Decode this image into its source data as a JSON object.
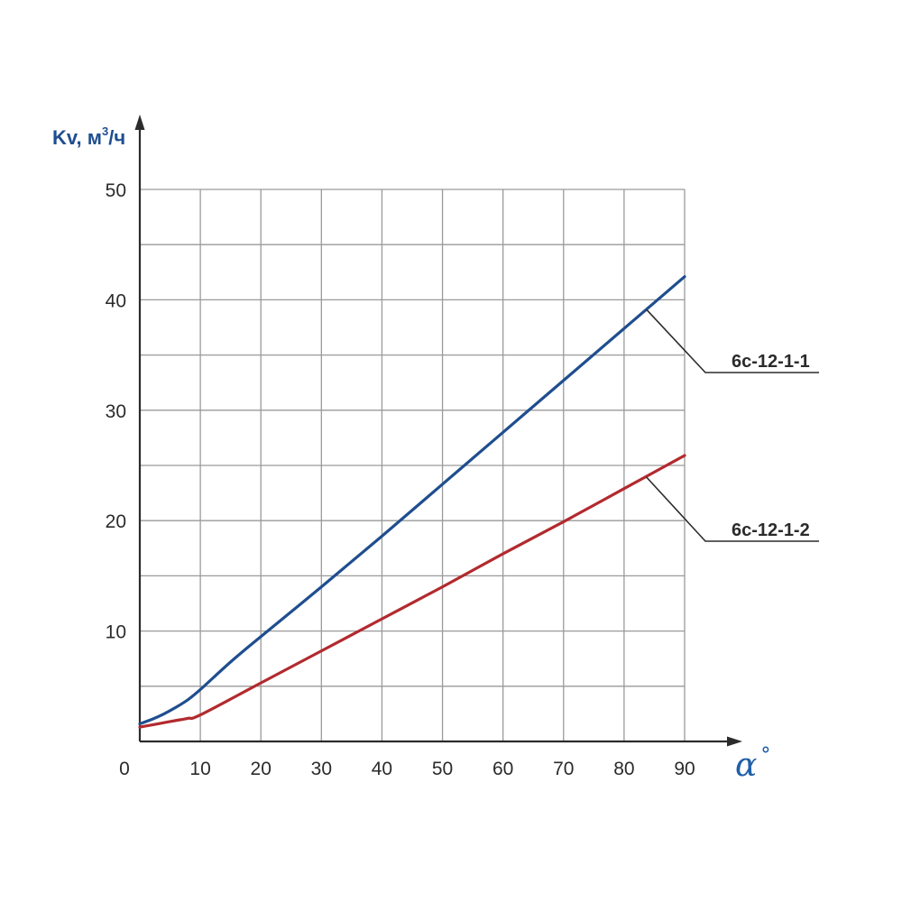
{
  "chart_data": {
    "type": "line",
    "ylabel": "Kv, м",
    "ylabel_sup": "3",
    "ylabel_suffix": "/ч",
    "xlabel": "α",
    "xlabel_suffix": "°",
    "xlim": [
      0,
      90
    ],
    "ylim": [
      0,
      50
    ],
    "x_ticks": [
      0,
      10,
      20,
      30,
      40,
      50,
      60,
      70,
      80,
      90
    ],
    "y_ticks": [
      10,
      20,
      30,
      40,
      50
    ],
    "x_tick_labels": [
      "0",
      "10",
      "20",
      "30",
      "40",
      "50",
      "60",
      "70",
      "80",
      "90"
    ],
    "y_tick_labels": [
      "10",
      "20",
      "30",
      "40",
      "50"
    ],
    "y_minor_step": 5,
    "grid": true,
    "legend": "direct labels at right with leader lines",
    "series": [
      {
        "name": "6с-12-1-1",
        "color": "#1f4e8f",
        "x": [
          0,
          2,
          4,
          6,
          8,
          10,
          15,
          20,
          30,
          40,
          50,
          60,
          70,
          80,
          90
        ],
        "y": [
          1.6,
          2.0,
          2.5,
          3.1,
          3.8,
          4.7,
          7.2,
          9.5,
          14.0,
          18.6,
          23.3,
          28.0,
          32.7,
          37.4,
          42.1
        ]
      },
      {
        "name": "6с-12-1-2",
        "color": "#b22a2e",
        "x": [
          0,
          2,
          4,
          6,
          8,
          10,
          20,
          30,
          40,
          50,
          60,
          70,
          80,
          90
        ],
        "y": [
          1.3,
          1.5,
          1.7,
          1.9,
          2.1,
          2.4,
          5.3,
          8.2,
          11.1,
          14.0,
          17.0,
          19.9,
          22.9,
          25.9
        ]
      }
    ]
  }
}
